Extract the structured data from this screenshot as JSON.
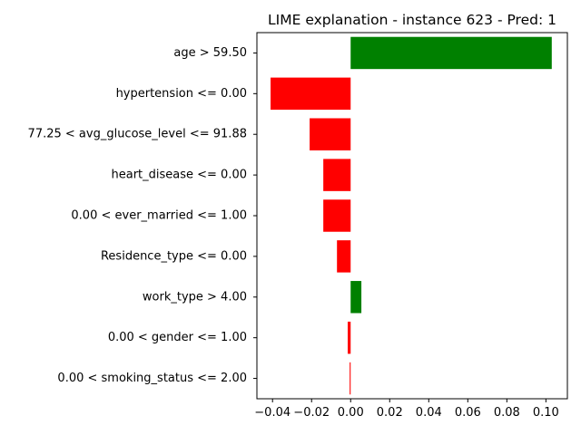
{
  "chart_data": {
    "type": "bar",
    "orientation": "horizontal",
    "title": "LIME explanation - instance 623 - Pred: 1",
    "xlabel": "",
    "ylabel": "",
    "categories": [
      "age > 59.50",
      "hypertension <= 0.00",
      "77.25 < avg_glucose_level <= 91.88",
      "heart_disease <= 0.00",
      "0.00 < ever_married <= 1.00",
      "Residence_type <= 0.00",
      "work_type > 4.00",
      "0.00 < gender <= 1.00",
      "0.00 < smoking_status <= 2.00"
    ],
    "values": [
      0.103,
      -0.041,
      -0.021,
      -0.014,
      -0.014,
      -0.007,
      0.0055,
      -0.0015,
      -0.0005
    ],
    "xlim": [
      -0.048,
      0.111
    ],
    "xticks": [
      -0.04,
      -0.02,
      0.0,
      0.02,
      0.04,
      0.06,
      0.08,
      0.1
    ],
    "xtick_labels": [
      "−0.04",
      "−0.02",
      "0.00",
      "0.02",
      "0.04",
      "0.06",
      "0.08",
      "0.10"
    ],
    "grid": false,
    "legend": "none",
    "colors": {
      "positive": "#008000",
      "negative": "#ff0000"
    }
  }
}
